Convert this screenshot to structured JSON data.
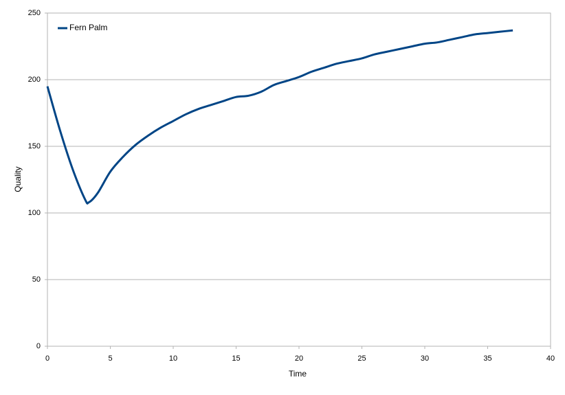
{
  "chart_data": {
    "type": "line",
    "x_label": "Time",
    "y_label": "Quality",
    "x": [
      0,
      1,
      2,
      3,
      3.3,
      4,
      5,
      6,
      7,
      8,
      9,
      10,
      11,
      12,
      13,
      14,
      15,
      16,
      17,
      18,
      19,
      20,
      21,
      22,
      23,
      24,
      25,
      26,
      27,
      28,
      29,
      30,
      31,
      32,
      33,
      34,
      35,
      36,
      37
    ],
    "series": [
      {
        "name": "Fern Palm",
        "color": "#004586",
        "values": [
          195,
          162,
          133,
          110,
          108,
          115,
          131,
          142,
          151,
          158,
          164,
          169,
          174,
          178,
          181,
          184,
          187,
          188,
          191,
          196,
          199,
          202,
          206,
          209,
          212,
          214,
          216,
          219,
          221,
          223,
          225,
          227,
          228,
          230,
          232,
          234,
          235,
          236,
          237
        ]
      }
    ],
    "xlim": [
      0,
      40
    ],
    "xticks": [
      0,
      5,
      10,
      15,
      20,
      25,
      30,
      35,
      40
    ],
    "ylim": [
      0,
      250
    ],
    "yticks": [
      0,
      50,
      100,
      150,
      200,
      250
    ],
    "grid": true,
    "legend": "upper-left"
  }
}
